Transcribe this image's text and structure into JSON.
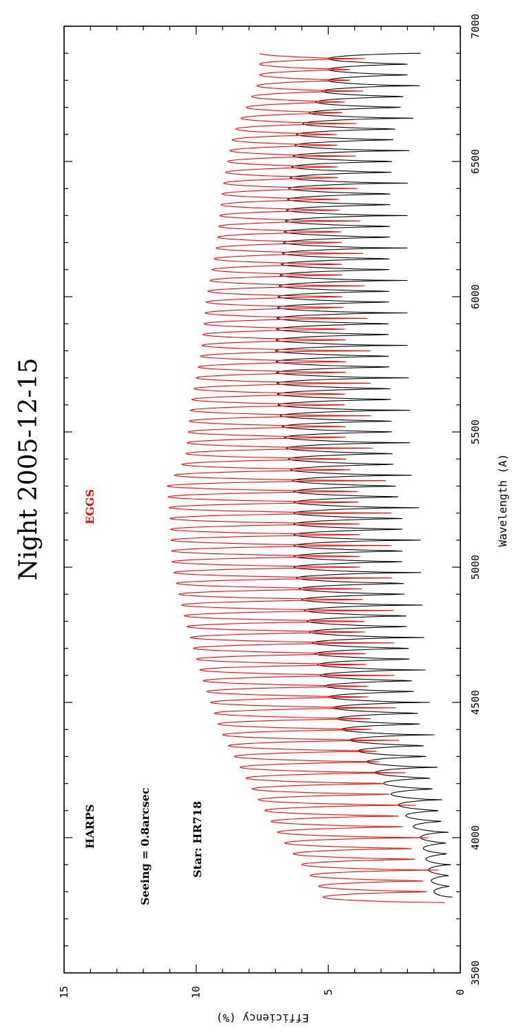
{
  "chart_data": {
    "type": "line",
    "orientation": "rotated-90-ccw",
    "title": "Night 2005-12-15",
    "xlabel": "Wavelength (A)",
    "ylabel": "Efficiency (%)",
    "xlim": [
      3500,
      7000
    ],
    "ylim": [
      0,
      15
    ],
    "x_ticks": [
      "3500",
      "4000",
      "4500",
      "5000",
      "5500",
      "6000",
      "6500",
      "7000"
    ],
    "y_ticks": [
      "0",
      "5",
      "10",
      "15"
    ],
    "grid": false,
    "annotations": [
      {
        "text": "HARPS",
        "color": "#000000"
      },
      {
        "text": "EGGS",
        "color": "#ff0000"
      },
      {
        "text": "Seeing = 0.8arcsec",
        "color": "#000000"
      },
      {
        "text": "Star: HR718",
        "color": "#000000"
      }
    ],
    "series": [
      {
        "name": "HARPS",
        "color": "#000000",
        "start": 3780,
        "end": 6900,
        "order_spacing": 40,
        "x": [
          3800,
          4000,
          4200,
          4400,
          4600,
          4800,
          5000,
          5200,
          5300,
          5400,
          5600,
          5800,
          6000,
          6200,
          6400,
          6600,
          6800
        ],
        "peak": [
          1.0,
          1.5,
          2.9,
          4.5,
          5.3,
          5.8,
          6.3,
          6.3,
          6.3,
          6.5,
          6.9,
          7.0,
          6.9,
          6.7,
          6.5,
          6.2,
          5.0
        ],
        "trough": [
          0.3,
          0.4,
          0.8,
          1.0,
          1.3,
          1.4,
          1.5,
          1.5,
          1.8,
          1.9,
          1.9,
          2.0,
          2.0,
          2.0,
          2.0,
          1.9,
          1.5
        ]
      },
      {
        "name": "EGGS",
        "color": "#ff0000",
        "start": 3760,
        "end": 6900,
        "order_spacing": 40,
        "x": [
          3800,
          4000,
          4200,
          4400,
          4600,
          4800,
          5000,
          5200,
          5300,
          5400,
          5600,
          5800,
          6000,
          6200,
          6400,
          6600,
          6800
        ],
        "peak": [
          5.2,
          6.8,
          8.0,
          9.1,
          9.8,
          10.4,
          10.9,
          11.0,
          11.1,
          10.4,
          10.2,
          9.8,
          9.6,
          9.2,
          9.0,
          8.6,
          7.6
        ],
        "trough": [
          0.6,
          1.2,
          2.0,
          2.4,
          2.5,
          2.5,
          2.6,
          2.6,
          2.7,
          3.3,
          3.4,
          3.4,
          3.6,
          3.7,
          3.9,
          4.0,
          3.6
        ]
      }
    ]
  }
}
